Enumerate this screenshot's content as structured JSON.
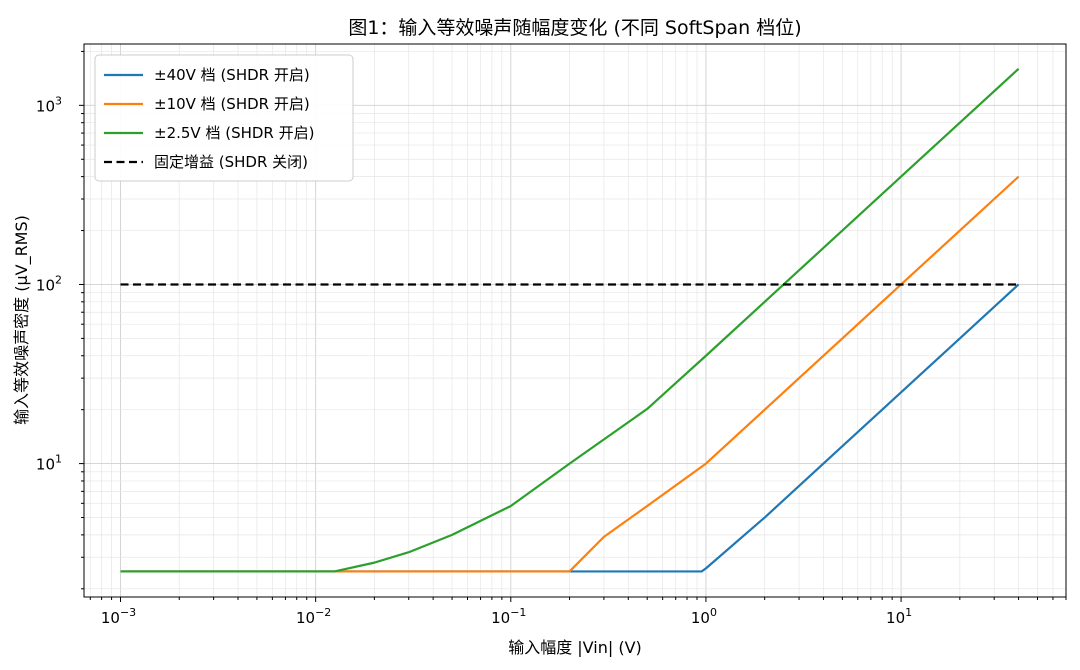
{
  "chart_data": {
    "type": "line",
    "title": "图1：输入等效噪声随幅度变化 (不同 SoftSpan 档位)",
    "xlabel": "输入幅度 |Vin| (V)",
    "ylabel": "输入等效噪声密度 (μV_RMS)",
    "xscale": "log",
    "yscale": "log",
    "xlim": [
      0.00065,
      70
    ],
    "ylim": [
      1.8,
      2200
    ],
    "grid": true,
    "legend_position": "top-left",
    "x_ticks": [
      {
        "value": 0.001,
        "base": "10",
        "exp": "−3"
      },
      {
        "value": 0.01,
        "base": "10",
        "exp": "−2"
      },
      {
        "value": 0.1,
        "base": "10",
        "exp": "−1"
      },
      {
        "value": 1,
        "base": "10",
        "exp": "0"
      },
      {
        "value": 10,
        "base": "10",
        "exp": "1"
      }
    ],
    "y_ticks": [
      {
        "value": 10,
        "base": "10",
        "exp": "1"
      },
      {
        "value": 100,
        "base": "10",
        "exp": "2"
      },
      {
        "value": 1000,
        "base": "10",
        "exp": "3"
      }
    ],
    "series": [
      {
        "name": "±40V 档 (SHDR 开启)",
        "color": "#1f77b4",
        "style": "solid",
        "points": [
          [
            0.001,
            2.5
          ],
          [
            0.95,
            2.5
          ],
          [
            1.0,
            2.6
          ],
          [
            2,
            5.0
          ],
          [
            5,
            12.5
          ],
          [
            10,
            25
          ],
          [
            20,
            50
          ],
          [
            40,
            100
          ]
        ]
      },
      {
        "name": "±10V 档 (SHDR 开启)",
        "color": "#ff7f0e",
        "style": "solid",
        "points": [
          [
            0.001,
            2.5
          ],
          [
            0.2,
            2.5
          ],
          [
            0.3,
            3.9
          ],
          [
            0.5,
            5.8
          ],
          [
            1,
            10
          ],
          [
            2,
            20
          ],
          [
            5,
            50
          ],
          [
            10,
            100
          ],
          [
            20,
            200
          ],
          [
            40,
            400
          ]
        ]
      },
      {
        "name": "±2.5V 档 (SHDR 开启)",
        "color": "#2ca02c",
        "style": "solid",
        "points": [
          [
            0.001,
            2.5
          ],
          [
            0.0125,
            2.5
          ],
          [
            0.02,
            2.8
          ],
          [
            0.03,
            3.2
          ],
          [
            0.05,
            4.0
          ],
          [
            0.1,
            5.8
          ],
          [
            0.2,
            10.0
          ],
          [
            0.5,
            20.2
          ],
          [
            1,
            40
          ],
          [
            2,
            80
          ],
          [
            5,
            200
          ],
          [
            10,
            400
          ],
          [
            20,
            800
          ],
          [
            40,
            1600
          ]
        ]
      },
      {
        "name": "固定增益 (SHDR 关闭)",
        "color": "#000000",
        "style": "dashed",
        "points": [
          [
            0.001,
            100
          ],
          [
            40,
            100
          ]
        ]
      }
    ]
  }
}
